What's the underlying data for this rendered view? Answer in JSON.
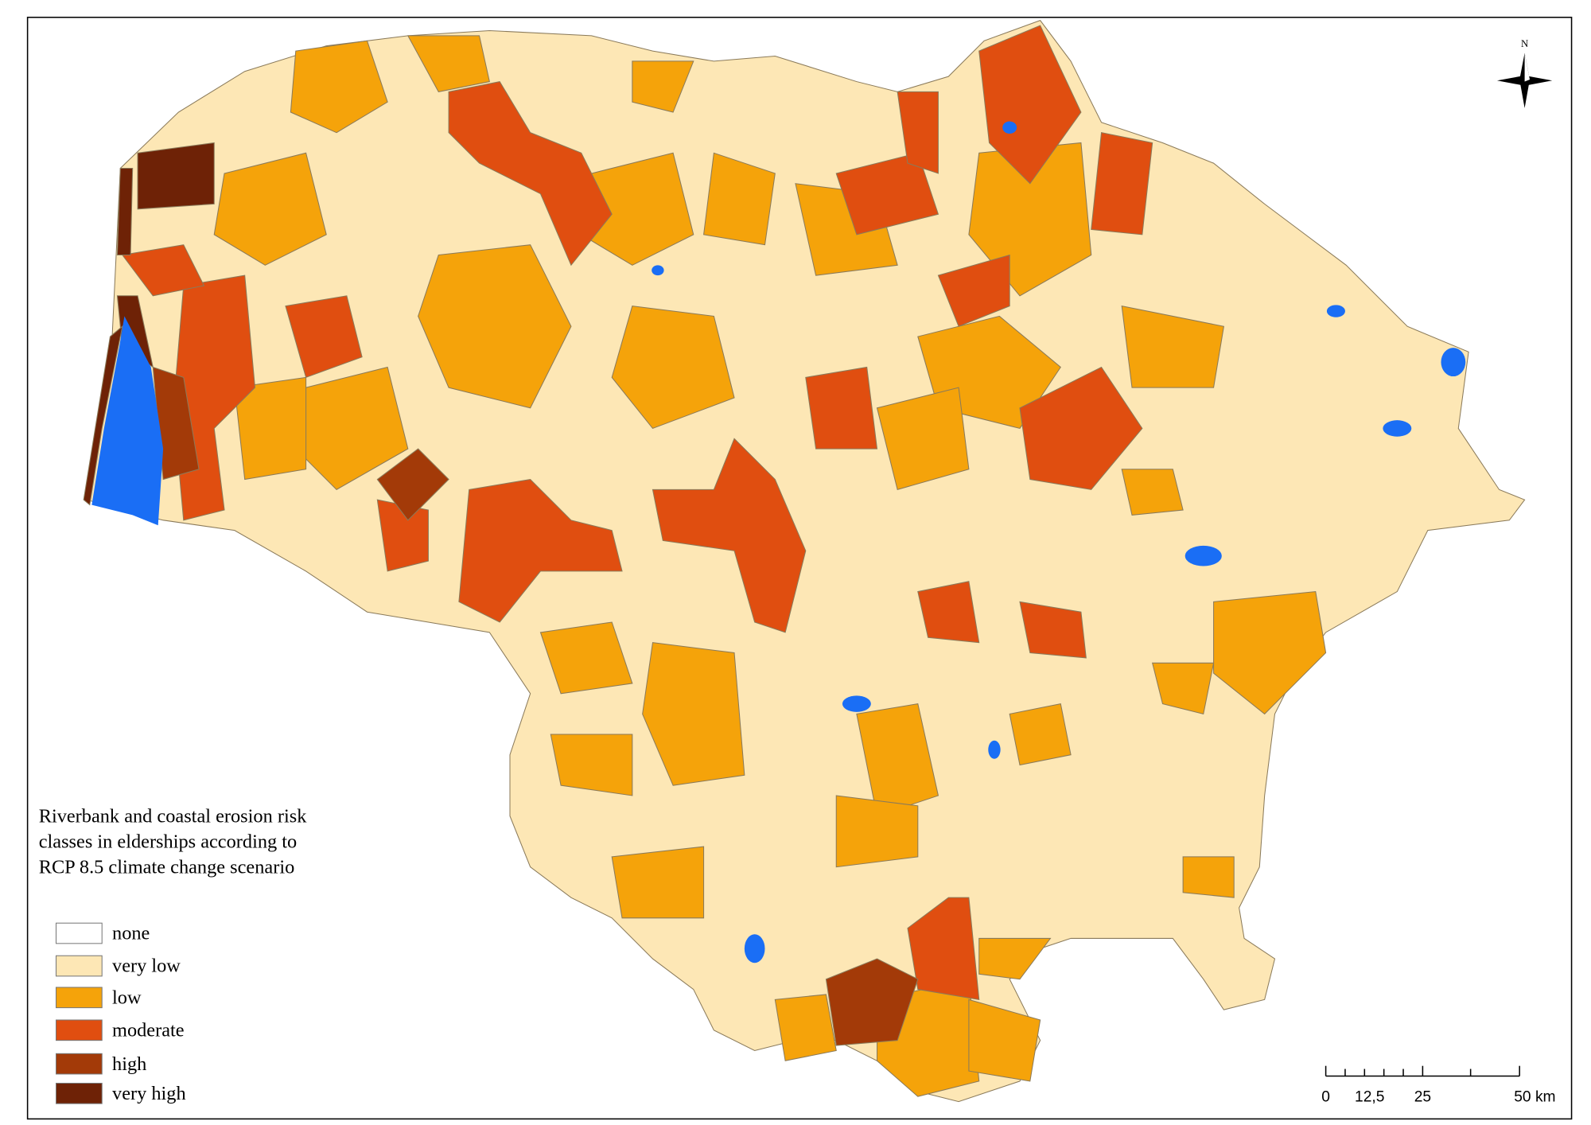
{
  "map": {
    "title_lines": [
      "Riverbank and coastal erosion risk",
      "classes in elderships according to",
      "RCP 8.5 climate change scenario"
    ],
    "legend": [
      {
        "label": "none",
        "color": "#ffffff"
      },
      {
        "label": "very low",
        "color": "#fde7b5"
      },
      {
        "label": "low",
        "color": "#f5a30a"
      },
      {
        "label": "moderate",
        "color": "#e04e10"
      },
      {
        "label": "high",
        "color": "#a33a08"
      },
      {
        "label": "very high",
        "color": "#6e2206"
      }
    ],
    "scale_labels": [
      "0",
      "12,5",
      "25",
      "50 km"
    ],
    "north": "N"
  }
}
